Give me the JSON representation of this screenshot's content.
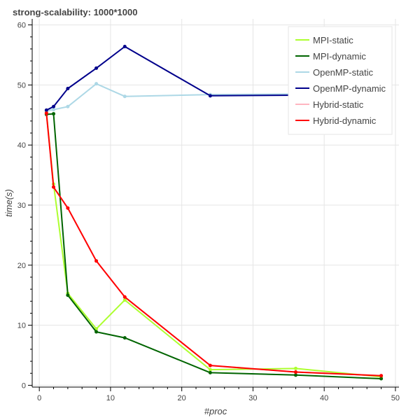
{
  "chart_data": {
    "type": "line",
    "title": "strong-scalability: 1000*1000",
    "xlabel": "#proc",
    "ylabel": "time(s)",
    "xlim": [
      -1,
      50.5
    ],
    "ylim": [
      -0.3,
      61
    ],
    "xticks": [
      0,
      10,
      20,
      30,
      40,
      50
    ],
    "yticks": [
      0,
      10,
      20,
      30,
      40,
      50,
      60
    ],
    "grid": true,
    "legend_position": "top-right",
    "series": [
      {
        "name": "MPI-static",
        "color": "#adff2f",
        "x": [
          1,
          2,
          4,
          8,
          12,
          24,
          36,
          48
        ],
        "y": [
          45.5,
          33.5,
          15.3,
          9.4,
          14.2,
          2.6,
          2.8,
          1.4
        ]
      },
      {
        "name": "MPI-dynamic",
        "color": "#006400",
        "x": [
          1,
          2,
          4,
          8,
          12,
          24,
          36,
          48
        ],
        "y": [
          45.1,
          45.2,
          15.0,
          8.9,
          7.9,
          2.1,
          1.7,
          1.1
        ]
      },
      {
        "name": "OpenMP-static",
        "color": "#add8e6",
        "x": [
          1,
          2,
          4,
          8,
          12,
          24,
          36,
          48
        ],
        "y": [
          45.7,
          45.9,
          46.4,
          50.2,
          48.1,
          48.4,
          48.5,
          48.6
        ]
      },
      {
        "name": "OpenMP-dynamic",
        "color": "#00008b",
        "x": [
          1,
          2,
          4,
          8,
          12,
          24,
          36,
          48
        ],
        "y": [
          45.8,
          46.4,
          49.4,
          52.8,
          56.4,
          48.2,
          48.3,
          48.5
        ]
      },
      {
        "name": "Hybrid-static",
        "color": "#ffb6c1",
        "x": [
          1,
          2,
          4,
          8,
          12,
          24,
          36,
          48
        ],
        "y": [
          45.3,
          33.0,
          29.5,
          20.7,
          14.7,
          3.3,
          2.2,
          1.6
        ]
      },
      {
        "name": "Hybrid-dynamic",
        "color": "#ff0000",
        "x": [
          1,
          2,
          4,
          8,
          12,
          24,
          36,
          48
        ],
        "y": [
          45.3,
          33.0,
          29.5,
          20.7,
          14.7,
          3.3,
          2.2,
          1.6
        ]
      }
    ]
  }
}
